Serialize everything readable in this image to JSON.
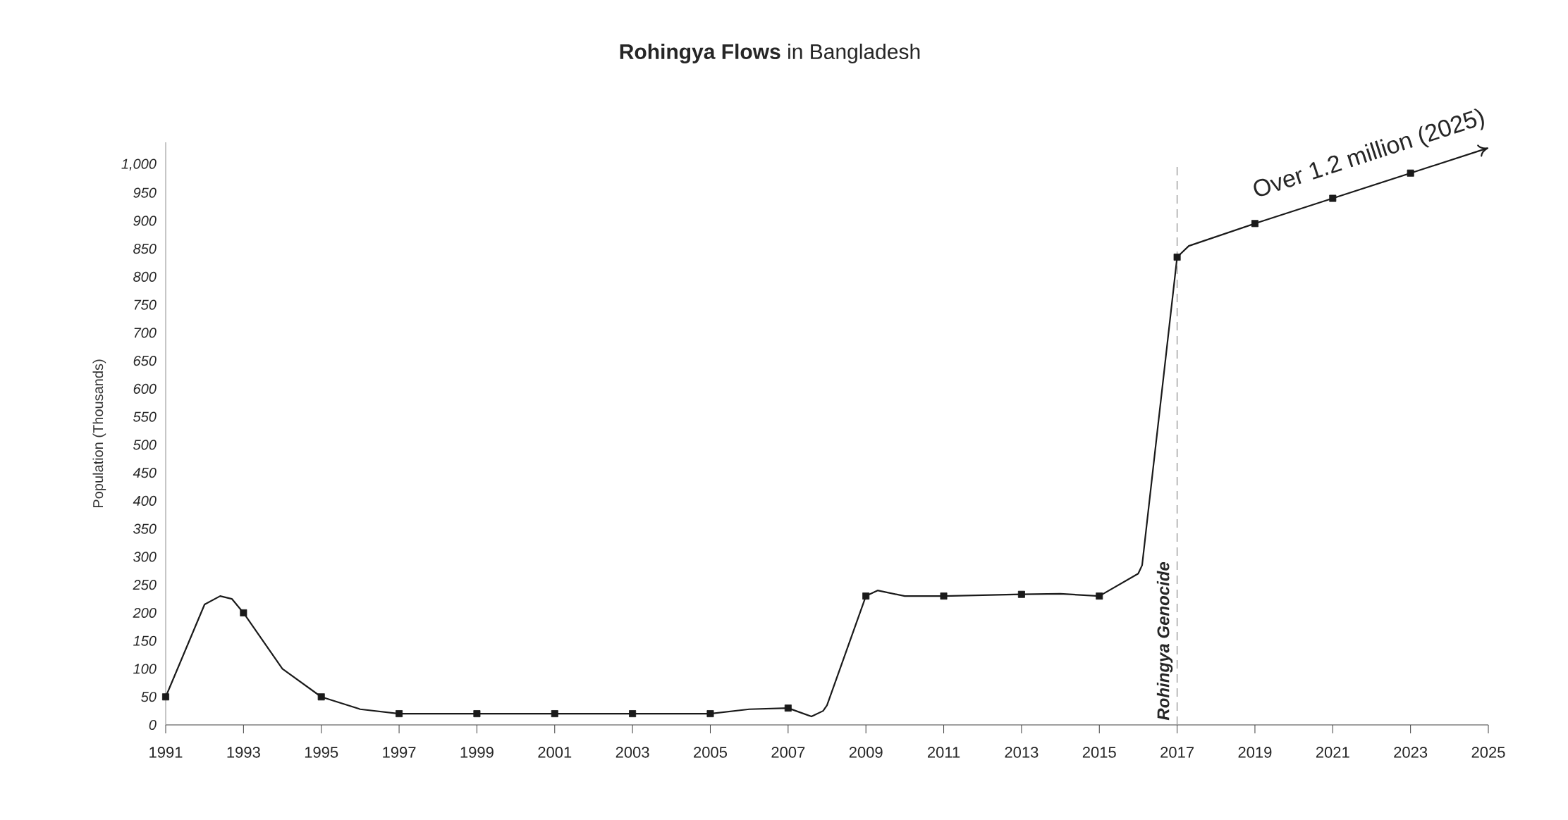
{
  "chart_data": {
    "type": "line",
    "title": "**Rohingya Flows** in Bangladesh",
    "ylabel": "Population (Thousands)",
    "xlim": [
      1991,
      2025
    ],
    "xticks": [
      1991,
      1993,
      1995,
      1997,
      1999,
      2001,
      2003,
      2005,
      2007,
      2009,
      2011,
      2013,
      2015,
      2017,
      2019,
      2021,
      2023,
      2025
    ],
    "ylim": [
      0,
      1040
    ],
    "yticks": [
      0,
      50,
      100,
      150,
      200,
      250,
      300,
      350,
      400,
      450,
      500,
      550,
      600,
      650,
      700,
      750,
      800,
      850,
      900,
      950,
      {
        "value": 1000,
        "label": "1,000"
      }
    ],
    "grid": false,
    "series": [
      {
        "color": "#1a1a1a",
        "marker": "none",
        "line_style": "solid",
        "x": [
          1991,
          1992,
          1992.4,
          1992.7,
          1993,
          1994,
          1995,
          1996,
          1997,
          1999,
          2001,
          2003,
          2005,
          2006,
          2007,
          2007.6,
          2007.9,
          2008,
          2009,
          2009.3,
          2010,
          2011,
          2013,
          2014,
          2015,
          2016,
          2016.1,
          2017,
          2017.3,
          2019,
          2021,
          2023,
          2025
        ],
        "values": [
          50,
          215,
          230,
          225,
          200,
          100,
          50,
          28,
          20,
          20,
          20,
          20,
          20,
          28,
          30,
          15,
          25,
          35,
          230,
          240,
          230,
          230,
          233,
          234,
          230,
          270,
          285,
          835,
          855,
          895,
          940,
          985,
          1030
        ]
      },
      {
        "type": "scatter",
        "color": "#1a1a1a",
        "marker": "square",
        "x": [
          1991,
          1993,
          1995,
          1997,
          1999,
          2001,
          2003,
          2005,
          2007,
          2009,
          2011,
          2013,
          2015,
          2017,
          2019,
          2021,
          2023
        ],
        "values": [
          50,
          200,
          50,
          20,
          20,
          20,
          20,
          20,
          30,
          230,
          230,
          233,
          230,
          835,
          895,
          940,
          985
        ]
      }
    ],
    "ref_lines": [
      {
        "axis": "x",
        "value": 2017,
        "label": "Rohingya Genocide",
        "color": "#9a9a9a",
        "line_style": "dashed"
      }
    ],
    "annotations": [
      {
        "text": "Over 1.2 million (2025)",
        "x": 2025,
        "y": 1030
      }
    ]
  }
}
